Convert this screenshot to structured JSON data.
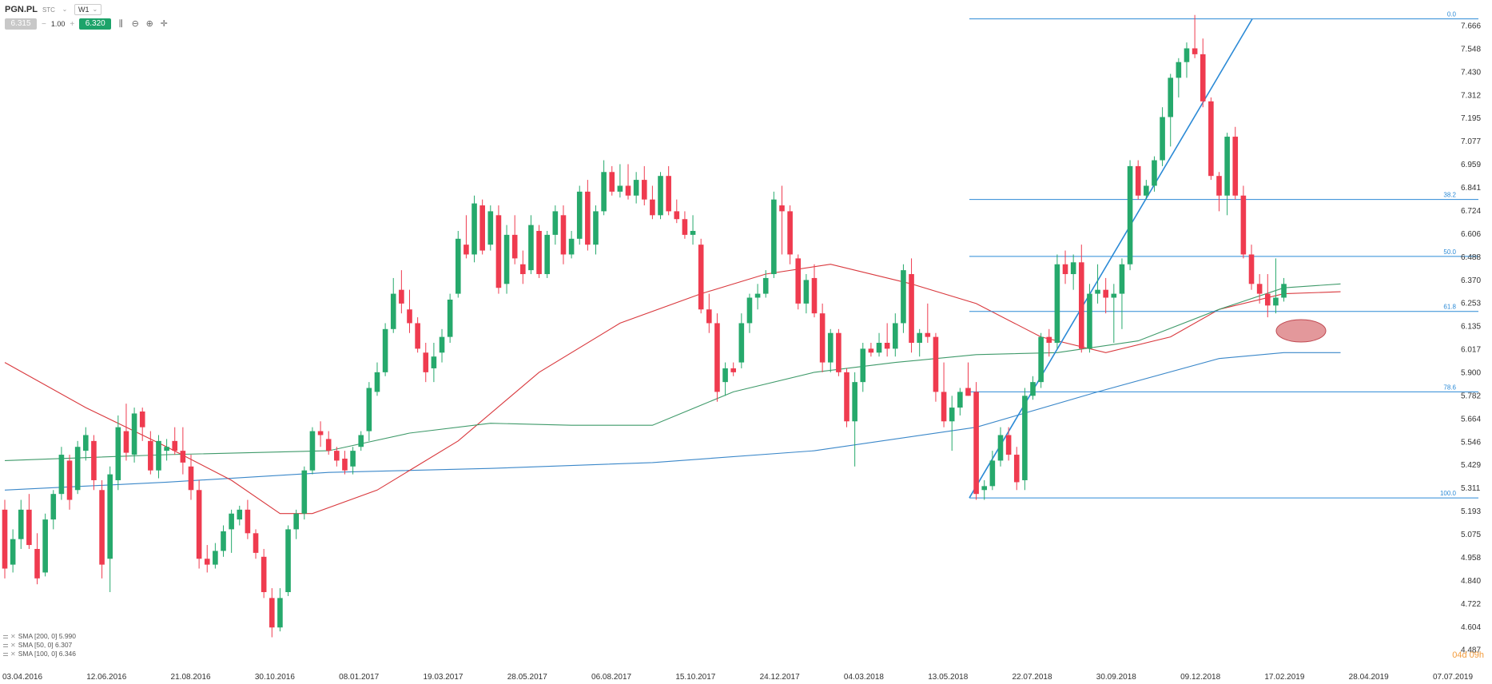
{
  "toolbar": {
    "symbol": "PGN.PL",
    "subtitle": "STC",
    "interval": "W1",
    "bid": "6.315",
    "quantity": "1.00",
    "ask": "6.320",
    "minus": "−",
    "plus": "+"
  },
  "legend": [
    {
      "label": "SMA [200, 0] 5.990"
    },
    {
      "label": "SMA [50, 0] 6.307"
    },
    {
      "label": "SMA [100, 0] 6.346"
    }
  ],
  "timer": "04d 09h",
  "colors": {
    "bull": "#26a96c",
    "bear": "#ef3b4f",
    "sma200": "#3a87c9",
    "sma50": "#d9383d",
    "sma100": "#3f9a6a",
    "fib": "#2b8ad6",
    "highlight": "#d9757a"
  },
  "chart_data": {
    "type": "candlestick",
    "symbol": "PGN.PL",
    "interval": "W1",
    "y_ticks": [
      "7.666",
      "7.548",
      "7.430",
      "7.312",
      "7.195",
      "7.077",
      "6.959",
      "6.841",
      "6.724",
      "6.606",
      "6.488",
      "6.370",
      "6.253",
      "6.135",
      "6.017",
      "5.900",
      "5.782",
      "5.664",
      "5.546",
      "5.429",
      "5.311",
      "5.193",
      "5.075",
      "4.958",
      "4.840",
      "4.722",
      "4.604",
      "4.487"
    ],
    "ylim": [
      4.487,
      7.666
    ],
    "x_ticks": [
      "03.04.2016",
      "12.06.2016",
      "21.08.2016",
      "30.10.2016",
      "08.01.2017",
      "19.03.2017",
      "28.05.2017",
      "06.08.2017",
      "15.10.2017",
      "24.12.2017",
      "04.03.2018",
      "13.05.2018",
      "22.07.2018",
      "30.09.2018",
      "09.12.2018",
      "17.02.2019",
      "28.04.2019",
      "07.07.2019"
    ],
    "candles": [
      [
        5.2,
        5.25,
        4.85,
        4.9
      ],
      [
        4.92,
        5.1,
        4.88,
        5.05
      ],
      [
        5.05,
        5.25,
        5.0,
        5.2
      ],
      [
        5.2,
        5.28,
        5.0,
        5.02
      ],
      [
        5.0,
        5.08,
        4.82,
        4.85
      ],
      [
        4.88,
        5.18,
        4.86,
        5.15
      ],
      [
        5.15,
        5.3,
        5.1,
        5.28
      ],
      [
        5.28,
        5.52,
        5.25,
        5.48
      ],
      [
        5.45,
        5.48,
        5.2,
        5.25
      ],
      [
        5.3,
        5.55,
        5.28,
        5.52
      ],
      [
        5.5,
        5.62,
        5.45,
        5.58
      ],
      [
        5.55,
        5.58,
        5.3,
        5.35
      ],
      [
        5.3,
        5.35,
        4.85,
        4.92
      ],
      [
        4.95,
        5.42,
        4.78,
        5.38
      ],
      [
        5.35,
        5.68,
        5.3,
        5.62
      ],
      [
        5.6,
        5.74,
        5.45,
        5.49
      ],
      [
        5.48,
        5.72,
        5.44,
        5.69
      ],
      [
        5.7,
        5.72,
        5.55,
        5.62
      ],
      [
        5.55,
        5.6,
        5.38,
        5.4
      ],
      [
        5.4,
        5.58,
        5.36,
        5.55
      ],
      [
        5.5,
        5.56,
        5.45,
        5.52
      ],
      [
        5.55,
        5.62,
        5.48,
        5.5
      ],
      [
        5.5,
        5.62,
        5.38,
        5.44
      ],
      [
        5.42,
        5.48,
        5.25,
        5.3
      ],
      [
        5.3,
        5.35,
        4.9,
        4.95
      ],
      [
        4.95,
        5.02,
        4.88,
        4.92
      ],
      [
        4.92,
        5.03,
        4.9,
        4.99
      ],
      [
        4.99,
        5.12,
        4.96,
        5.09
      ],
      [
        5.1,
        5.2,
        4.98,
        5.18
      ],
      [
        5.15,
        5.22,
        5.12,
        5.2
      ],
      [
        5.2,
        5.25,
        5.05,
        5.08
      ],
      [
        5.08,
        5.1,
        4.95,
        4.98
      ],
      [
        4.96,
        5.0,
        4.75,
        4.78
      ],
      [
        4.75,
        4.8,
        4.55,
        4.6
      ],
      [
        4.6,
        4.8,
        4.58,
        4.75
      ],
      [
        4.78,
        5.12,
        4.76,
        5.1
      ],
      [
        5.1,
        5.2,
        5.05,
        5.18
      ],
      [
        5.18,
        5.42,
        5.15,
        5.4
      ],
      [
        5.4,
        5.62,
        5.38,
        5.6
      ],
      [
        5.6,
        5.65,
        5.52,
        5.58
      ],
      [
        5.56,
        5.6,
        5.48,
        5.5
      ],
      [
        5.5,
        5.52,
        5.42,
        5.45
      ],
      [
        5.46,
        5.5,
        5.38,
        5.4
      ],
      [
        5.42,
        5.52,
        5.38,
        5.5
      ],
      [
        5.52,
        5.6,
        5.5,
        5.58
      ],
      [
        5.6,
        5.85,
        5.55,
        5.82
      ],
      [
        5.8,
        5.95,
        5.78,
        5.9
      ],
      [
        5.9,
        6.15,
        5.88,
        6.12
      ],
      [
        6.12,
        6.38,
        6.1,
        6.3
      ],
      [
        6.32,
        6.42,
        6.2,
        6.25
      ],
      [
        6.22,
        6.32,
        6.1,
        6.15
      ],
      [
        6.15,
        6.18,
        6.0,
        6.02
      ],
      [
        6.0,
        6.05,
        5.85,
        5.9
      ],
      [
        5.92,
        6.05,
        5.85,
        5.98
      ],
      [
        6.0,
        6.12,
        5.95,
        6.08
      ],
      [
        6.08,
        6.3,
        6.05,
        6.27
      ],
      [
        6.3,
        6.62,
        6.28,
        6.58
      ],
      [
        6.55,
        6.7,
        6.48,
        6.5
      ],
      [
        6.5,
        6.8,
        6.46,
        6.76
      ],
      [
        6.75,
        6.78,
        6.5,
        6.52
      ],
      [
        6.55,
        6.75,
        6.52,
        6.72
      ],
      [
        6.7,
        6.75,
        6.3,
        6.33
      ],
      [
        6.35,
        6.65,
        6.3,
        6.6
      ],
      [
        6.6,
        6.7,
        6.45,
        6.48
      ],
      [
        6.45,
        6.52,
        6.35,
        6.4
      ],
      [
        6.42,
        6.7,
        6.4,
        6.65
      ],
      [
        6.62,
        6.65,
        6.38,
        6.4
      ],
      [
        6.4,
        6.62,
        6.38,
        6.6
      ],
      [
        6.6,
        6.75,
        6.55,
        6.72
      ],
      [
        6.7,
        6.75,
        6.45,
        6.5
      ],
      [
        6.5,
        6.62,
        6.48,
        6.58
      ],
      [
        6.58,
        6.85,
        6.55,
        6.82
      ],
      [
        6.82,
        6.88,
        6.52,
        6.55
      ],
      [
        6.55,
        6.75,
        6.5,
        6.72
      ],
      [
        6.72,
        6.98,
        6.7,
        6.92
      ],
      [
        6.92,
        6.95,
        6.8,
        6.82
      ],
      [
        6.82,
        6.96,
        6.79,
        6.85
      ],
      [
        6.85,
        6.96,
        6.78,
        6.8
      ],
      [
        6.8,
        6.92,
        6.76,
        6.88
      ],
      [
        6.88,
        6.95,
        6.75,
        6.78
      ],
      [
        6.78,
        6.85,
        6.68,
        6.7
      ],
      [
        6.7,
        6.92,
        6.68,
        6.9
      ],
      [
        6.9,
        6.95,
        6.7,
        6.72
      ],
      [
        6.72,
        6.78,
        6.66,
        6.68
      ],
      [
        6.68,
        6.72,
        6.58,
        6.6
      ],
      [
        6.6,
        6.7,
        6.55,
        6.62
      ],
      [
        6.55,
        6.58,
        6.2,
        6.22
      ],
      [
        6.22,
        6.3,
        6.1,
        6.15
      ],
      [
        6.15,
        6.2,
        5.75,
        5.8
      ],
      [
        5.85,
        5.95,
        5.78,
        5.92
      ],
      [
        5.92,
        5.95,
        5.88,
        5.9
      ],
      [
        5.95,
        6.2,
        5.92,
        6.15
      ],
      [
        6.15,
        6.3,
        6.1,
        6.28
      ],
      [
        6.28,
        6.35,
        6.22,
        6.3
      ],
      [
        6.3,
        6.42,
        6.28,
        6.38
      ],
      [
        6.4,
        6.82,
        6.38,
        6.78
      ],
      [
        6.75,
        6.85,
        6.5,
        6.72
      ],
      [
        6.72,
        6.75,
        6.45,
        6.5
      ],
      [
        6.48,
        6.5,
        6.22,
        6.25
      ],
      [
        6.25,
        6.4,
        6.2,
        6.37
      ],
      [
        6.38,
        6.45,
        6.18,
        6.2
      ],
      [
        6.2,
        6.25,
        5.9,
        5.95
      ],
      [
        5.95,
        6.12,
        5.9,
        6.1
      ],
      [
        6.1,
        6.12,
        5.88,
        5.9
      ],
      [
        5.9,
        5.92,
        5.62,
        5.65
      ],
      [
        5.65,
        5.9,
        5.42,
        5.85
      ],
      [
        5.85,
        6.05,
        5.8,
        6.02
      ],
      [
        6.02,
        6.05,
        5.98,
        6.0
      ],
      [
        6.0,
        6.1,
        5.98,
        6.05
      ],
      [
        6.05,
        6.15,
        5.98,
        6.02
      ],
      [
        6.02,
        6.2,
        5.98,
        6.15
      ],
      [
        6.15,
        6.45,
        6.1,
        6.42
      ],
      [
        6.4,
        6.48,
        6.0,
        6.05
      ],
      [
        6.05,
        6.12,
        5.98,
        6.1
      ],
      [
        6.1,
        6.25,
        6.05,
        6.08
      ],
      [
        6.08,
        6.1,
        5.75,
        5.8
      ],
      [
        5.8,
        5.95,
        5.62,
        5.65
      ],
      [
        5.65,
        5.78,
        5.5,
        5.72
      ],
      [
        5.72,
        5.82,
        5.68,
        5.8
      ],
      [
        5.82,
        5.95,
        5.78,
        5.78
      ],
      [
        5.8,
        5.85,
        5.25,
        5.28
      ],
      [
        5.3,
        5.35,
        5.25,
        5.32
      ],
      [
        5.32,
        5.5,
        5.3,
        5.45
      ],
      [
        5.45,
        5.62,
        5.42,
        5.58
      ],
      [
        5.58,
        5.62,
        5.45,
        5.48
      ],
      [
        5.48,
        5.52,
        5.3,
        5.34
      ],
      [
        5.35,
        5.82,
        5.3,
        5.78
      ],
      [
        5.78,
        5.88,
        5.76,
        5.85
      ],
      [
        5.85,
        6.1,
        5.82,
        6.08
      ],
      [
        6.08,
        6.12,
        5.98,
        6.05
      ],
      [
        6.05,
        6.5,
        6.02,
        6.45
      ],
      [
        6.45,
        6.52,
        6.35,
        6.4
      ],
      [
        6.4,
        6.5,
        6.32,
        6.46
      ],
      [
        6.46,
        6.55,
        6.0,
        6.02
      ],
      [
        6.02,
        6.35,
        6.0,
        6.3
      ],
      [
        6.3,
        6.45,
        6.25,
        6.32
      ],
      [
        6.32,
        6.38,
        6.2,
        6.28
      ],
      [
        6.28,
        6.35,
        6.05,
        6.3
      ],
      [
        6.3,
        6.48,
        6.12,
        6.45
      ],
      [
        6.45,
        6.98,
        6.42,
        6.95
      ],
      [
        6.95,
        6.98,
        6.78,
        6.8
      ],
      [
        6.8,
        6.88,
        6.78,
        6.85
      ],
      [
        6.85,
        7.0,
        6.82,
        6.98
      ],
      [
        6.98,
        7.25,
        6.95,
        7.2
      ],
      [
        7.2,
        7.42,
        7.05,
        7.4
      ],
      [
        7.4,
        7.5,
        7.3,
        7.48
      ],
      [
        7.48,
        7.58,
        7.4,
        7.55
      ],
      [
        7.55,
        7.72,
        7.5,
        7.52
      ],
      [
        7.52,
        7.6,
        7.25,
        7.28
      ],
      [
        7.28,
        7.3,
        6.88,
        6.9
      ],
      [
        6.9,
        6.92,
        6.72,
        6.8
      ],
      [
        6.8,
        7.12,
        6.7,
        7.1
      ],
      [
        7.1,
        7.15,
        6.78,
        6.8
      ],
      [
        6.8,
        6.85,
        6.48,
        6.5
      ],
      [
        6.5,
        6.55,
        6.32,
        6.35
      ],
      [
        6.35,
        6.4,
        6.25,
        6.3
      ],
      [
        6.3,
        6.4,
        6.18,
        6.24
      ],
      [
        6.24,
        6.48,
        6.2,
        6.28
      ],
      [
        6.28,
        6.38,
        6.26,
        6.35
      ]
    ],
    "sma": [
      {
        "name": "SMA [200, 0]",
        "value": 5.99,
        "points": [
          [
            0,
            5.3
          ],
          [
            20,
            5.34
          ],
          [
            40,
            5.39
          ],
          [
            60,
            5.41
          ],
          [
            80,
            5.44
          ],
          [
            100,
            5.5
          ],
          [
            120,
            5.62
          ],
          [
            135,
            5.8
          ],
          [
            150,
            5.97
          ],
          [
            158,
            6.0
          ],
          [
            165,
            6.0
          ]
        ]
      },
      {
        "name": "SMA [50, 0]",
        "value": 6.307,
        "points": [
          [
            0,
            5.95
          ],
          [
            10,
            5.72
          ],
          [
            20,
            5.52
          ],
          [
            28,
            5.35
          ],
          [
            34,
            5.18
          ],
          [
            38,
            5.18
          ],
          [
            46,
            5.3
          ],
          [
            56,
            5.55
          ],
          [
            66,
            5.9
          ],
          [
            76,
            6.15
          ],
          [
            86,
            6.3
          ],
          [
            94,
            6.4
          ],
          [
            102,
            6.45
          ],
          [
            112,
            6.35
          ],
          [
            120,
            6.25
          ],
          [
            128,
            6.08
          ],
          [
            136,
            6.0
          ],
          [
            144,
            6.08
          ],
          [
            150,
            6.22
          ],
          [
            158,
            6.3
          ],
          [
            165,
            6.31
          ]
        ]
      },
      {
        "name": "SMA [100, 0]",
        "value": 6.346,
        "points": [
          [
            0,
            5.45
          ],
          [
            20,
            5.48
          ],
          [
            40,
            5.5
          ],
          [
            50,
            5.59
          ],
          [
            60,
            5.64
          ],
          [
            70,
            5.63
          ],
          [
            80,
            5.63
          ],
          [
            90,
            5.8
          ],
          [
            100,
            5.9
          ],
          [
            110,
            5.95
          ],
          [
            120,
            5.99
          ],
          [
            130,
            6.0
          ],
          [
            140,
            6.06
          ],
          [
            150,
            6.22
          ],
          [
            158,
            6.33
          ],
          [
            165,
            6.35
          ]
        ]
      }
    ],
    "fibonacci": [
      {
        "level": "0.0",
        "price": 7.7
      },
      {
        "level": "38.2",
        "price": 6.78
      },
      {
        "level": "50.0",
        "price": 6.49
      },
      {
        "level": "61.8",
        "price": 6.21
      },
      {
        "level": "78.6",
        "price": 5.8
      },
      {
        "level": "100.0",
        "price": 5.26
      }
    ],
    "trendline": {
      "from": [
        5.26
      ],
      "to": [
        7.7
      ]
    }
  }
}
